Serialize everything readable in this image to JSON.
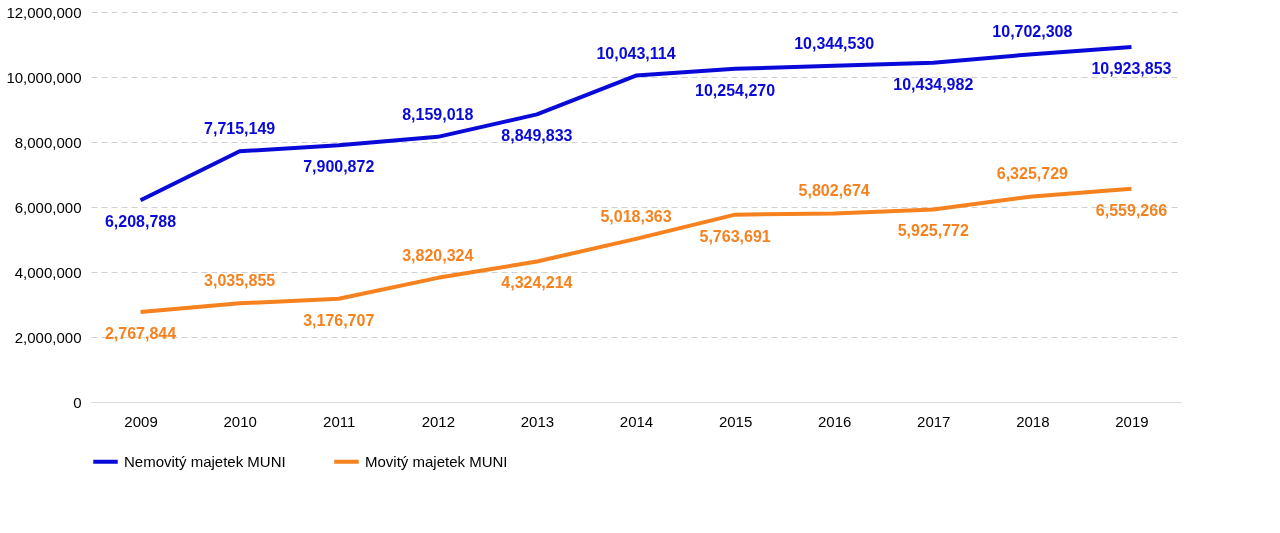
{
  "chart_data": {
    "type": "line",
    "categories": [
      "2009",
      "2010",
      "2011",
      "2012",
      "2013",
      "2014",
      "2015",
      "2016",
      "2017",
      "2018",
      "2019"
    ],
    "series": [
      {
        "name": "Nemovitý majetek MUNI",
        "color": "#0a0ad8",
        "values": [
          6208788,
          7715149,
          7900872,
          8159018,
          8849833,
          10043114,
          10254270,
          10344530,
          10434982,
          10702308,
          10923853
        ],
        "value_labels": [
          "6,208,788",
          "7,715,149",
          "7,900,872",
          "8,159,018",
          "8,849,833",
          "10,043,114",
          "10,254,270",
          "10,344,530",
          "10,434,982",
          "10,702,308",
          "10,923,853"
        ]
      },
      {
        "name": "Movitý majetek MUNI",
        "color": "#f5821f",
        "values": [
          2767844,
          3035855,
          3176707,
          3820324,
          4324214,
          5018363,
          5763691,
          5802674,
          5925772,
          6325729,
          6559266
        ],
        "value_labels": [
          "2,767,844",
          "3,035,855",
          "3,176,707",
          "3,820,324",
          "4,324,214",
          "5,018,363",
          "5,763,691",
          "5,802,674",
          "5,925,772",
          "6,325,729",
          "6,559,266"
        ]
      }
    ],
    "ylim": [
      0,
      12000000
    ],
    "yticks": [
      {
        "value": 0,
        "label": "0"
      },
      {
        "value": 2000000,
        "label": "2,000,000"
      },
      {
        "value": 4000000,
        "label": "4,000,000"
      },
      {
        "value": 6000000,
        "label": "6,000,000"
      },
      {
        "value": 8000000,
        "label": "8,000,000"
      },
      {
        "value": 10000000,
        "label": "10,000,000"
      },
      {
        "value": 12000000,
        "label": "12,000,000"
      }
    ],
    "grid": "y",
    "legend": "bottom",
    "marker": "none",
    "line_style": "solid"
  }
}
